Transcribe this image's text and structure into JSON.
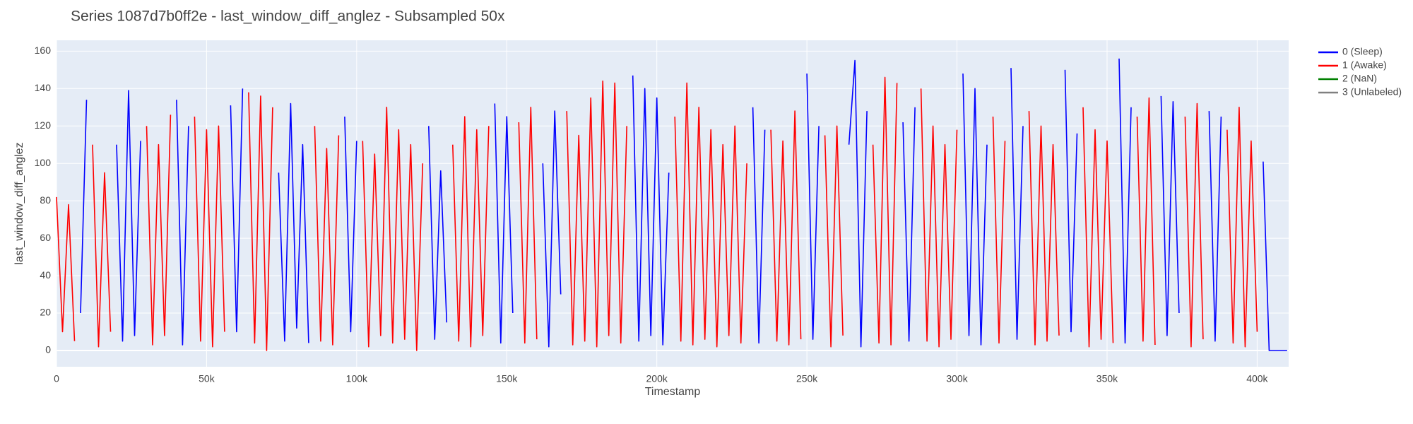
{
  "chart_data": {
    "type": "line",
    "title": "Series 1087d7b0ff2e - last_window_diff_anglez - Subsampled 50x",
    "x_label": "Timestamp",
    "y_label": "last_window_diff_anglez",
    "xlim": [
      0,
      410500
    ],
    "ylim": [
      -8.7,
      165.8
    ],
    "xticks": [
      0,
      {
        "value": 50000,
        "label": "50k"
      },
      {
        "value": 100000,
        "label": "100k"
      },
      {
        "value": 150000,
        "label": "150k"
      },
      {
        "value": 200000,
        "label": "200k"
      },
      {
        "value": 250000,
        "label": "250k"
      },
      {
        "value": 300000,
        "label": "300k"
      },
      {
        "value": 350000,
        "label": "350k"
      },
      {
        "value": 400000,
        "label": "400k"
      }
    ],
    "yticks": [
      0,
      20,
      40,
      60,
      80,
      100,
      120,
      140,
      160
    ],
    "grid": true,
    "legend": "right",
    "series": [
      {
        "name": "0 (Sleep)",
        "color": "#0000ff",
        "x": [
          8000,
          10000,
          null,
          20000,
          22000,
          24000,
          26000,
          28000,
          null,
          40000,
          42000,
          44000,
          null,
          58000,
          60000,
          62000,
          null,
          74000,
          76000,
          78000,
          80000,
          82000,
          84000,
          null,
          96000,
          98000,
          100000,
          null,
          124000,
          126000,
          128000,
          130000,
          null,
          146000,
          148000,
          150000,
          152000,
          null,
          162000,
          164000,
          166000,
          168000,
          null,
          192000,
          194000,
          196000,
          198000,
          200000,
          202000,
          204000,
          null,
          232000,
          234000,
          236000,
          null,
          250000,
          252000,
          254000,
          null,
          264000,
          266000,
          268000,
          270000,
          null,
          282000,
          284000,
          286000,
          null,
          302000,
          304000,
          306000,
          308000,
          310000,
          null,
          318000,
          320000,
          322000,
          null,
          336000,
          338000,
          340000,
          null,
          354000,
          356000,
          358000,
          null,
          368000,
          370000,
          372000,
          374000,
          null,
          384000,
          386000,
          388000,
          null,
          402000,
          404000,
          406000,
          408000,
          410000
        ],
        "values": [
          20,
          134,
          null,
          110,
          5,
          139,
          8,
          112,
          null,
          134,
          3,
          120,
          null,
          131,
          10,
          140,
          null,
          95,
          5,
          132,
          12,
          110,
          4,
          null,
          125,
          10,
          112,
          null,
          120,
          6,
          96,
          15,
          null,
          132,
          4,
          125,
          20,
          null,
          100,
          2,
          128,
          30,
          null,
          147,
          5,
          140,
          8,
          135,
          3,
          95,
          null,
          130,
          4,
          118,
          null,
          148,
          6,
          120,
          null,
          110,
          155,
          2,
          128,
          null,
          122,
          5,
          130,
          null,
          148,
          8,
          140,
          3,
          110,
          null,
          151,
          6,
          120,
          null,
          150,
          10,
          116,
          null,
          156,
          4,
          130,
          null,
          136,
          8,
          133,
          20,
          null,
          128,
          5,
          125,
          null,
          101,
          0,
          0,
          0,
          0
        ]
      },
      {
        "name": "1 (Awake)",
        "color": "#ff0000",
        "x": [
          0,
          2000,
          4000,
          6000,
          null,
          12000,
          14000,
          16000,
          18000,
          null,
          30000,
          32000,
          34000,
          36000,
          38000,
          null,
          46000,
          48000,
          50000,
          52000,
          54000,
          56000,
          null,
          64000,
          66000,
          68000,
          70000,
          72000,
          null,
          86000,
          88000,
          90000,
          92000,
          94000,
          null,
          102000,
          104000,
          106000,
          108000,
          110000,
          112000,
          114000,
          116000,
          118000,
          120000,
          122000,
          null,
          132000,
          134000,
          136000,
          138000,
          140000,
          142000,
          144000,
          null,
          154000,
          156000,
          158000,
          160000,
          null,
          170000,
          172000,
          174000,
          176000,
          178000,
          180000,
          182000,
          184000,
          186000,
          188000,
          190000,
          null,
          206000,
          208000,
          210000,
          212000,
          214000,
          216000,
          218000,
          220000,
          222000,
          224000,
          226000,
          228000,
          230000,
          null,
          238000,
          240000,
          242000,
          244000,
          246000,
          248000,
          null,
          256000,
          258000,
          260000,
          262000,
          null,
          272000,
          274000,
          276000,
          278000,
          280000,
          null,
          288000,
          290000,
          292000,
          294000,
          296000,
          298000,
          300000,
          null,
          312000,
          314000,
          316000,
          null,
          324000,
          326000,
          328000,
          330000,
          332000,
          334000,
          null,
          342000,
          344000,
          346000,
          348000,
          350000,
          352000,
          null,
          360000,
          362000,
          364000,
          366000,
          null,
          376000,
          378000,
          380000,
          382000,
          null,
          390000,
          392000,
          394000,
          396000,
          398000,
          400000
        ],
        "values": [
          82,
          10,
          78,
          5,
          null,
          110,
          2,
          95,
          10,
          null,
          120,
          3,
          110,
          8,
          126,
          null,
          125,
          5,
          118,
          2,
          120,
          10,
          null,
          138,
          4,
          136,
          0,
          130,
          null,
          120,
          5,
          108,
          3,
          115,
          null,
          112,
          2,
          105,
          8,
          130,
          4,
          118,
          6,
          110,
          0,
          100,
          null,
          110,
          5,
          125,
          2,
          118,
          8,
          120,
          null,
          122,
          4,
          130,
          6,
          null,
          128,
          3,
          115,
          5,
          135,
          2,
          144,
          8,
          143,
          4,
          120,
          null,
          125,
          5,
          143,
          3,
          130,
          6,
          118,
          2,
          110,
          8,
          120,
          4,
          100,
          null,
          118,
          5,
          112,
          3,
          128,
          6,
          null,
          115,
          2,
          120,
          8,
          null,
          110,
          4,
          146,
          3,
          143,
          null,
          140,
          5,
          120,
          2,
          110,
          6,
          118,
          null,
          125,
          4,
          112,
          null,
          128,
          3,
          120,
          5,
          110,
          8,
          null,
          130,
          2,
          118,
          6,
          112,
          4,
          null,
          125,
          5,
          135,
          3,
          null,
          125,
          2,
          132,
          6,
          null,
          118,
          4,
          130,
          2,
          112,
          10
        ]
      },
      {
        "name": "2 (NaN)",
        "color": "#008000",
        "x": [],
        "values": []
      },
      {
        "name": "3 (Unlabeled)",
        "color": "#808080",
        "x": [],
        "values": []
      }
    ]
  }
}
